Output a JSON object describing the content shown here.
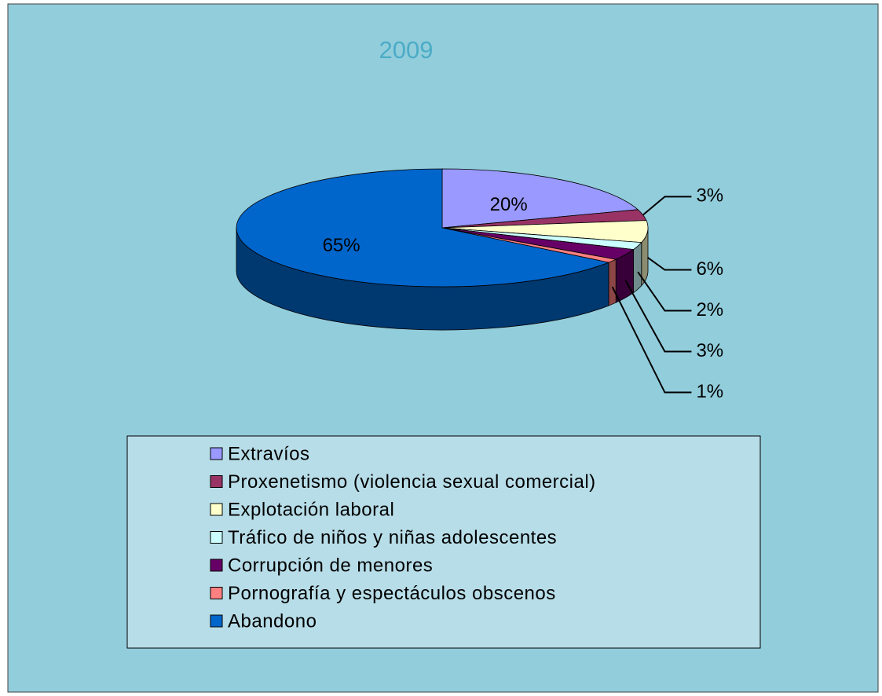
{
  "chart_data": {
    "type": "pie",
    "title": "2009",
    "categories": [
      "Extravíos",
      "Proxenetismo (violencia sexual comercial)",
      "Explotación laboral",
      "Tráfico de niños y niñas adolescentes",
      "Corrupción de menores",
      "Pornografía y espectáculos obscenos",
      "Abandono"
    ],
    "values": [
      20,
      3,
      6,
      2,
      3,
      1,
      65
    ],
    "value_labels": [
      "20%",
      "3%",
      "6%",
      "2%",
      "3%",
      "1%",
      "65%"
    ],
    "colors": [
      "#9999ff",
      "#993366",
      "#ffffcc",
      "#ccffff",
      "#660066",
      "#ff8080",
      "#0066cc"
    ],
    "legend": "bottom"
  }
}
